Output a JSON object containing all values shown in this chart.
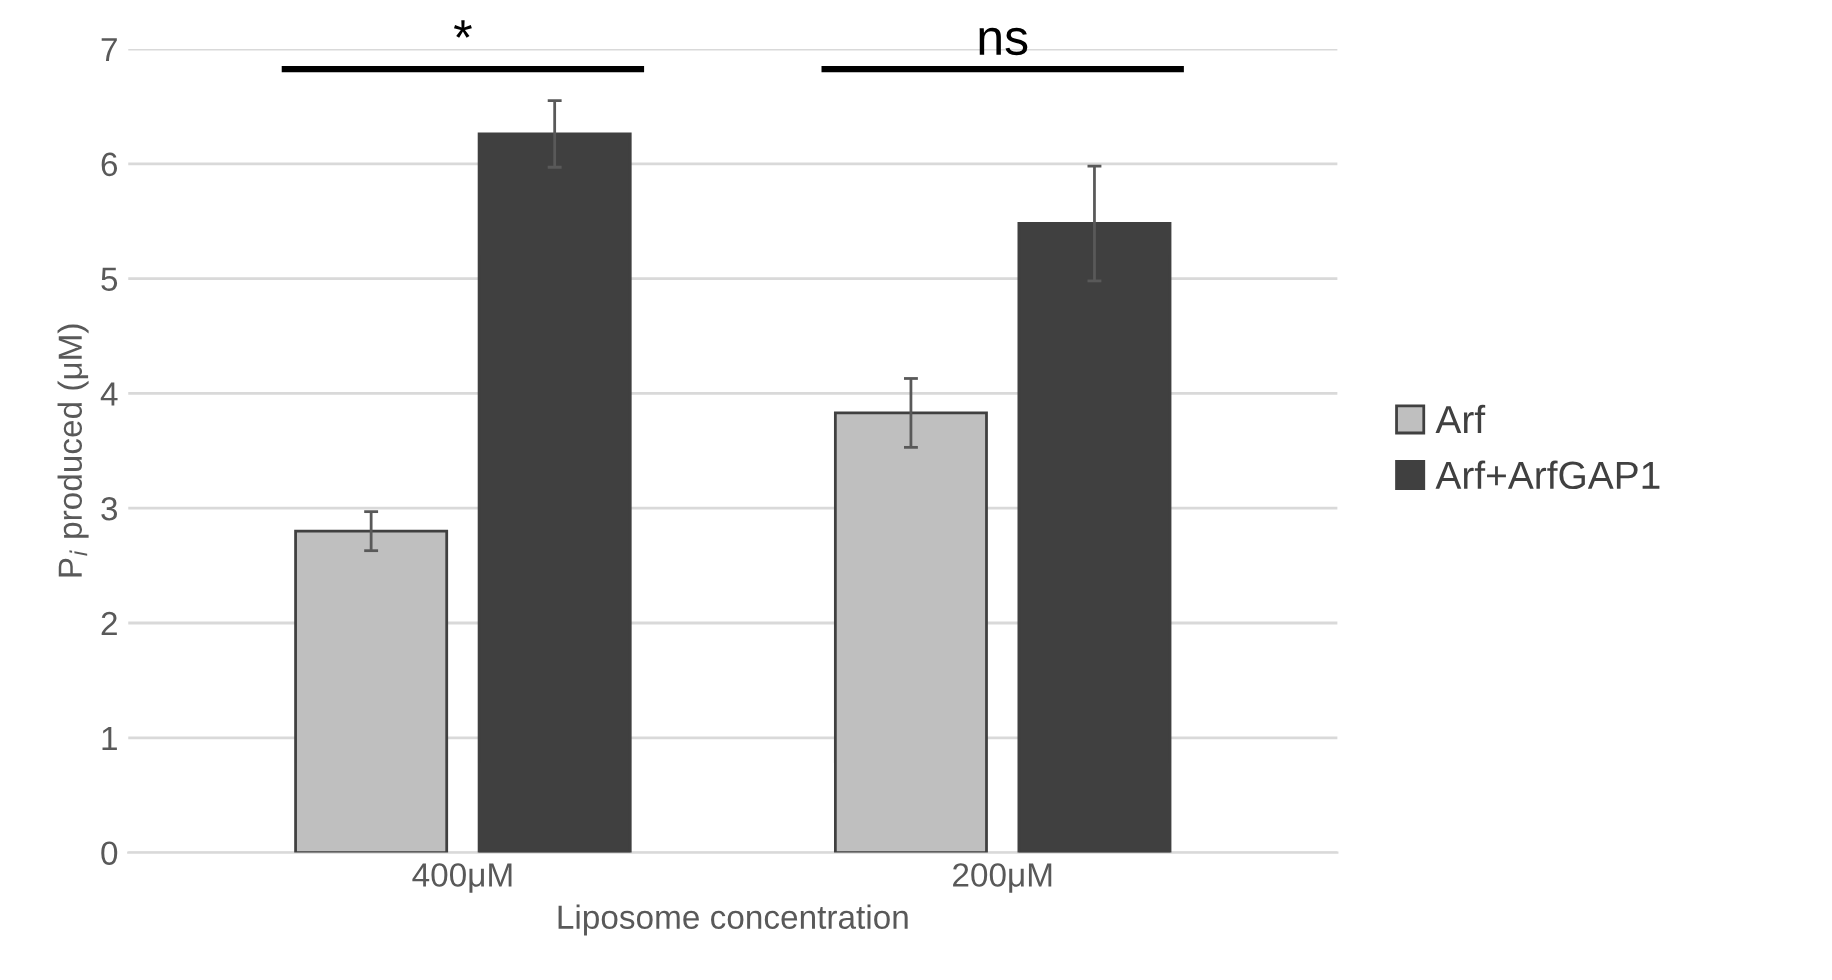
{
  "chart_data": {
    "type": "bar",
    "xlabel": "Liposome concentration",
    "ylabel": "P$_{i}$ produced (μM)",
    "categories": [
      "400μM",
      "200μM"
    ],
    "series": [
      {
        "name": "Arf",
        "color": "#bfbfbf",
        "values": [
          2.8,
          3.83
        ],
        "errors": [
          0.17,
          0.3
        ]
      },
      {
        "name": "Arf+ArfGAP1",
        "color": "#404040",
        "values": [
          6.26,
          5.48
        ],
        "errors": [
          0.29,
          0.5
        ]
      }
    ],
    "ylim": [
      0,
      7
    ],
    "yticks": [
      0,
      1,
      2,
      3,
      4,
      5,
      6,
      7
    ],
    "grid": "y",
    "legend": "right",
    "annotations": [
      "*",
      "ns"
    ]
  }
}
